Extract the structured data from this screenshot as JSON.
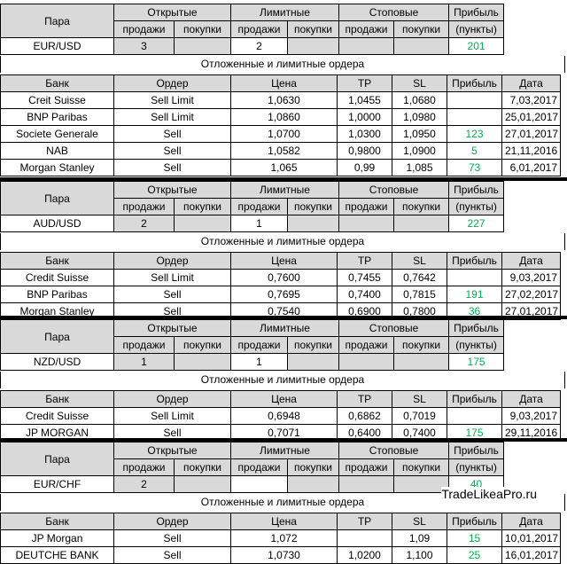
{
  "headers": {
    "pair": "Пара",
    "open": "Открытые",
    "limit": "Лимитные",
    "stop": "Стоповые",
    "profit": "Прибыль",
    "points": "(пункты)",
    "sell": "продажи",
    "buy": "покупки",
    "bank": "Банк",
    "order": "Ордер",
    "price": "Цена",
    "tp": "TP",
    "sl": "SL",
    "date": "Дата",
    "pending_title": "Отложенные и лимитные ордера"
  },
  "brand": "TradeLikeaPro.ru",
  "blocks": [
    {
      "pair": "EUR/USD",
      "open_sell": "3",
      "open_buy": "",
      "limit_sell": "2",
      "limit_buy": "",
      "stop_sell": "",
      "stop_buy": "",
      "profit": "201",
      "orders": [
        {
          "bank": "Creit Suisse",
          "order": "Sell Limit",
          "price": "1,0630",
          "tp": "1,0455",
          "sl": "1,0680",
          "profit": "",
          "date": "7,03,2017"
        },
        {
          "bank": "BNP Paribas",
          "order": "Sell Limit",
          "price": "1,0860",
          "tp": "1,0000",
          "sl": "1,0980",
          "profit": "",
          "date": "25,01,2017"
        },
        {
          "bank": "Societe Generale",
          "order": "Sell",
          "price": "1,0700",
          "tp": "1,0300",
          "sl": "1,0950",
          "profit": "123",
          "date": "27,01,2017"
        },
        {
          "bank": "NAB",
          "order": "Sell",
          "price": "1,0582",
          "tp": "0,9800",
          "sl": "1,0900",
          "profit": "5",
          "date": "21,11,2016"
        },
        {
          "bank": "Morgan Stanley",
          "order": "Sell",
          "price": "1,065",
          "tp": "0,99",
          "sl": "1,085",
          "profit": "73",
          "date": "6,01,2017"
        }
      ]
    },
    {
      "pair": "AUD/USD",
      "open_sell": "2",
      "open_buy": "",
      "limit_sell": "1",
      "limit_buy": "",
      "stop_sell": "",
      "stop_buy": "",
      "profit": "227",
      "orders": [
        {
          "bank": "Credit Suisse",
          "order": "Sell Limit",
          "price": "0,7600",
          "tp": "0,7455",
          "sl": "0,7642",
          "profit": "",
          "date": "9,03,2017"
        },
        {
          "bank": "BNP Paribas",
          "order": "Sell",
          "price": "0,7695",
          "tp": "0,7400",
          "sl": "0,7815",
          "profit": "191",
          "date": "27,02,2017"
        },
        {
          "bank": "Morgan Stanley",
          "order": "Sell",
          "price": "0,7540",
          "tp": "0,6900",
          "sl": "0,7800",
          "profit": "36",
          "date": "27,01,2017"
        }
      ]
    },
    {
      "pair": "NZD/USD",
      "open_sell": "1",
      "open_buy": "",
      "limit_sell": "1",
      "limit_buy": "",
      "stop_sell": "",
      "stop_buy": "",
      "profit": "175",
      "orders": [
        {
          "bank": "Credit Suisse",
          "order": "Sell Limit",
          "price": "0,6948",
          "tp": "0,6862",
          "sl": "0,7019",
          "profit": "",
          "date": "9,03,2017"
        },
        {
          "bank": "JP MORGAN",
          "order": "Sell",
          "price": "0,7071",
          "tp": "0,6400",
          "sl": "0,7400",
          "profit": "175",
          "date": "29,11,2016"
        }
      ]
    },
    {
      "pair": "EUR/CHF",
      "open_sell": "2",
      "open_buy": "",
      "limit_sell": "",
      "limit_buy": "",
      "stop_sell": "",
      "stop_buy": "",
      "profit": "40",
      "orders": [
        {
          "bank": "JP Morgan",
          "order": "Sell",
          "price": "1,072",
          "tp": "",
          "sl": "1,09",
          "profit": "15",
          "date": "10,01,2017"
        },
        {
          "bank": "DEUTCHE BANK",
          "order": "Sell",
          "price": "1,0730",
          "tp": "1,0200",
          "sl": "1,100",
          "profit": "25",
          "date": "16,01,2017"
        }
      ]
    }
  ]
}
